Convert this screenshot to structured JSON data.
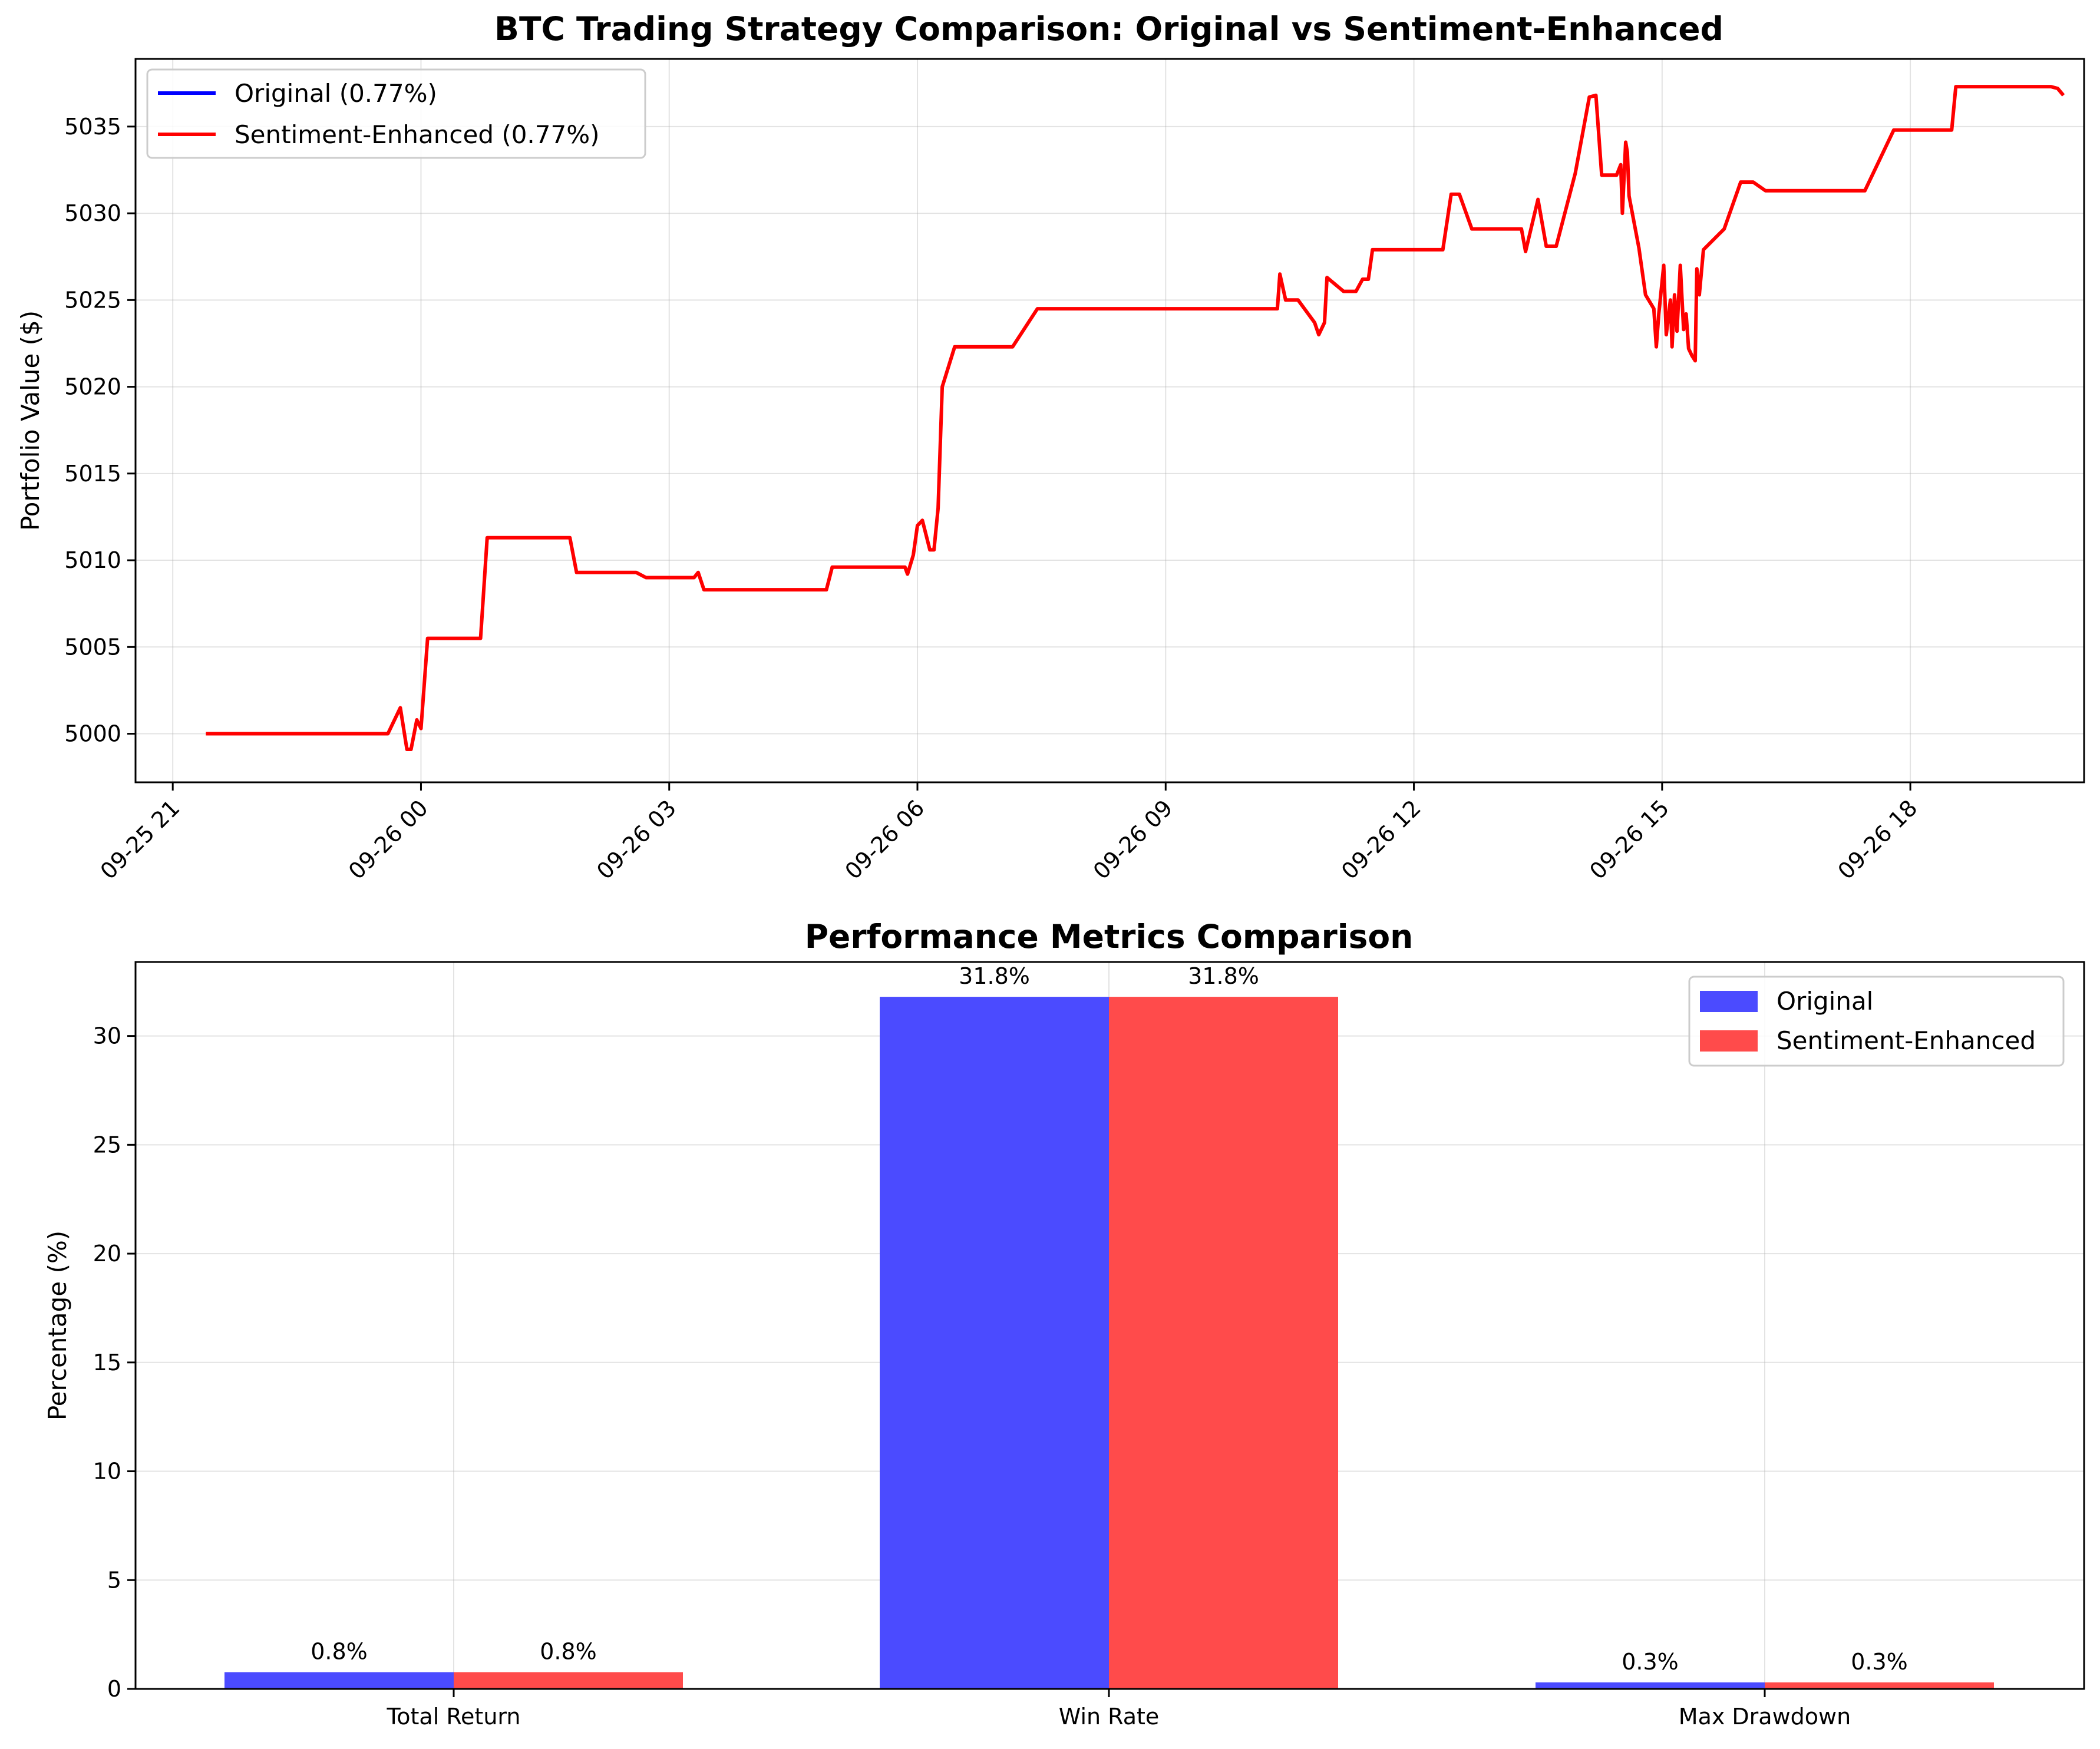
{
  "chart_data": [
    {
      "type": "line",
      "title": "BTC Trading Strategy Comparison: Original vs Sentiment-Enhanced",
      "xlabel": "",
      "ylabel": "Portfolio Value ($)",
      "x_ticks": [
        "09-25 21",
        "09-26 00",
        "09-26 03",
        "09-26 06",
        "09-26 09",
        "09-26 12",
        "09-26 15",
        "09-26 18"
      ],
      "x_tick_hours": [
        -3,
        0,
        3,
        6,
        9,
        12,
        15,
        18
      ],
      "xlim_hours": [
        -3.45,
        20.1
      ],
      "ylim": [
        4997.2,
        5038.9
      ],
      "y_ticks": [
        5000,
        5005,
        5010,
        5015,
        5020,
        5025,
        5030,
        5035
      ],
      "grid": true,
      "legend_position": "upper left",
      "series": [
        {
          "name": "Original (0.77%)",
          "color": "#0000ff",
          "values": []
        },
        {
          "name": "Sentiment-Enhanced (0.77%)",
          "color": "#ff0000",
          "values": [
            [
              -2.6,
              5000.0
            ],
            [
              -0.4,
              5000.0
            ],
            [
              -0.25,
              5001.5
            ],
            [
              -0.17,
              4999.1
            ],
            [
              -0.12,
              4999.1
            ],
            [
              -0.05,
              5000.8
            ],
            [
              0.0,
              5000.3
            ],
            [
              0.08,
              5005.5
            ],
            [
              0.72,
              5005.5
            ],
            [
              0.8,
              5011.3
            ],
            [
              1.8,
              5011.3
            ],
            [
              1.88,
              5009.3
            ],
            [
              2.6,
              5009.3
            ],
            [
              2.72,
              5009.0
            ],
            [
              3.3,
              5009.0
            ],
            [
              3.35,
              5009.3
            ],
            [
              3.42,
              5008.3
            ],
            [
              4.9,
              5008.3
            ],
            [
              4.97,
              5009.6
            ],
            [
              5.85,
              5009.6
            ],
            [
              5.88,
              5009.2
            ],
            [
              5.95,
              5010.3
            ],
            [
              6.0,
              5012.0
            ],
            [
              6.06,
              5012.3
            ],
            [
              6.15,
              5010.6
            ],
            [
              6.2,
              5010.6
            ],
            [
              6.25,
              5013.0
            ],
            [
              6.3,
              5020.0
            ],
            [
              6.45,
              5022.3
            ],
            [
              7.15,
              5022.3
            ],
            [
              7.45,
              5024.5
            ],
            [
              10.35,
              5024.5
            ],
            [
              10.38,
              5026.5
            ],
            [
              10.45,
              5025.0
            ],
            [
              10.6,
              5025.0
            ],
            [
              10.8,
              5023.7
            ],
            [
              10.85,
              5023.0
            ],
            [
              10.92,
              5023.7
            ],
            [
              10.95,
              5026.3
            ],
            [
              11.15,
              5025.5
            ],
            [
              11.3,
              5025.5
            ],
            [
              11.38,
              5026.2
            ],
            [
              11.45,
              5026.2
            ],
            [
              11.5,
              5027.9
            ],
            [
              12.35,
              5027.9
            ],
            [
              12.45,
              5031.1
            ],
            [
              12.55,
              5031.1
            ],
            [
              12.7,
              5029.1
            ],
            [
              13.3,
              5029.1
            ],
            [
              13.35,
              5027.8
            ],
            [
              13.5,
              5030.8
            ],
            [
              13.6,
              5028.1
            ],
            [
              13.72,
              5028.1
            ],
            [
              13.95,
              5032.3
            ],
            [
              14.12,
              5036.7
            ],
            [
              14.2,
              5036.8
            ],
            [
              14.27,
              5032.2
            ],
            [
              14.45,
              5032.2
            ],
            [
              14.5,
              5032.8
            ],
            [
              14.52,
              5030.0
            ],
            [
              14.56,
              5034.1
            ],
            [
              14.58,
              5033.5
            ],
            [
              14.6,
              5031.0
            ],
            [
              14.72,
              5028.0
            ],
            [
              14.8,
              5025.3
            ],
            [
              14.9,
              5024.5
            ],
            [
              14.93,
              5022.3
            ],
            [
              14.96,
              5024.2
            ],
            [
              15.02,
              5027.0
            ],
            [
              15.05,
              5023.0
            ],
            [
              15.1,
              5025.0
            ],
            [
              15.12,
              5022.3
            ],
            [
              15.15,
              5025.3
            ],
            [
              15.18,
              5023.2
            ],
            [
              15.22,
              5027.0
            ],
            [
              15.26,
              5023.3
            ],
            [
              15.29,
              5024.2
            ],
            [
              15.32,
              5022.2
            ],
            [
              15.36,
              5021.8
            ],
            [
              15.4,
              5021.5
            ],
            [
              15.42,
              5026.8
            ],
            [
              15.45,
              5025.3
            ],
            [
              15.5,
              5027.9
            ],
            [
              15.75,
              5029.1
            ],
            [
              15.95,
              5031.8
            ],
            [
              16.1,
              5031.8
            ],
            [
              16.25,
              5031.3
            ],
            [
              17.45,
              5031.3
            ],
            [
              17.8,
              5034.8
            ],
            [
              18.5,
              5034.8
            ],
            [
              18.55,
              5037.3
            ],
            [
              19.7,
              5037.3
            ],
            [
              19.78,
              5037.2
            ],
            [
              19.85,
              5036.8
            ]
          ]
        }
      ]
    },
    {
      "type": "bar",
      "title": "Performance Metrics Comparison",
      "xlabel": "",
      "ylabel": "Percentage (%)",
      "categories": [
        "Total Return",
        "Win Rate",
        "Max Drawdown"
      ],
      "ylim": [
        0,
        33.4
      ],
      "y_ticks": [
        0,
        5,
        10,
        15,
        20,
        25,
        30
      ],
      "grid": true,
      "legend_position": "upper right",
      "series": [
        {
          "name": "Original",
          "color": "#4b4bff",
          "values": [
            0.77,
            31.8,
            0.3
          ],
          "labels": [
            "0.8%",
            "31.8%",
            "0.3%"
          ]
        },
        {
          "name": "Sentiment-Enhanced",
          "color": "#ff4b4b",
          "values": [
            0.77,
            31.8,
            0.3
          ],
          "labels": [
            "0.8%",
            "31.8%",
            "0.3%"
          ]
        }
      ]
    }
  ]
}
